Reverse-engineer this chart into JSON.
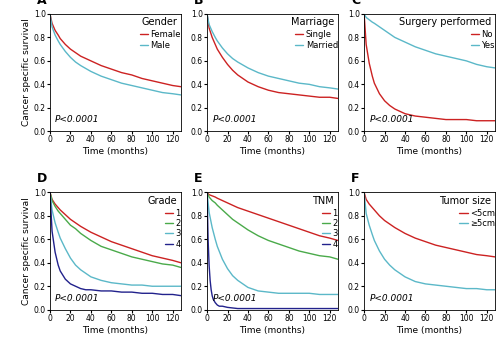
{
  "panels": [
    {
      "label": "A",
      "title": "Gender",
      "curves": [
        {
          "name": "Female",
          "color": "#CC2222",
          "x": [
            0,
            2,
            5,
            8,
            10,
            15,
            20,
            25,
            30,
            40,
            50,
            60,
            70,
            80,
            90,
            100,
            110,
            120,
            128
          ],
          "y": [
            1.0,
            0.92,
            0.86,
            0.82,
            0.79,
            0.74,
            0.7,
            0.67,
            0.64,
            0.6,
            0.56,
            0.53,
            0.5,
            0.48,
            0.45,
            0.43,
            0.41,
            0.39,
            0.38
          ]
        },
        {
          "name": "Male",
          "color": "#5BB8C8",
          "x": [
            0,
            2,
            5,
            8,
            10,
            15,
            20,
            25,
            30,
            40,
            50,
            60,
            70,
            80,
            90,
            100,
            110,
            120,
            128
          ],
          "y": [
            1.0,
            0.89,
            0.82,
            0.77,
            0.74,
            0.68,
            0.63,
            0.59,
            0.56,
            0.51,
            0.47,
            0.44,
            0.41,
            0.39,
            0.37,
            0.35,
            0.33,
            0.32,
            0.31
          ]
        }
      ]
    },
    {
      "label": "B",
      "title": "Marriage",
      "curves": [
        {
          "name": "Single",
          "color": "#CC2222",
          "x": [
            0,
            2,
            5,
            8,
            10,
            15,
            20,
            25,
            30,
            40,
            50,
            60,
            70,
            80,
            90,
            100,
            110,
            120,
            128
          ],
          "y": [
            1.0,
            0.88,
            0.8,
            0.74,
            0.7,
            0.63,
            0.57,
            0.52,
            0.48,
            0.42,
            0.38,
            0.35,
            0.33,
            0.32,
            0.31,
            0.3,
            0.29,
            0.29,
            0.28
          ]
        },
        {
          "name": "Married",
          "color": "#5BB8C8",
          "x": [
            0,
            2,
            5,
            8,
            10,
            15,
            20,
            25,
            30,
            40,
            50,
            60,
            70,
            80,
            90,
            100,
            110,
            120,
            128
          ],
          "y": [
            1.0,
            0.91,
            0.85,
            0.8,
            0.77,
            0.71,
            0.66,
            0.62,
            0.59,
            0.54,
            0.5,
            0.47,
            0.45,
            0.43,
            0.41,
            0.4,
            0.38,
            0.37,
            0.36
          ]
        }
      ]
    },
    {
      "label": "C",
      "title": "Surgery performed",
      "curves": [
        {
          "name": "No",
          "color": "#CC2222",
          "x": [
            0,
            2,
            5,
            8,
            10,
            15,
            20,
            25,
            30,
            40,
            50,
            60,
            70,
            80,
            90,
            100,
            110,
            120,
            128
          ],
          "y": [
            1.0,
            0.74,
            0.58,
            0.47,
            0.41,
            0.32,
            0.26,
            0.22,
            0.19,
            0.15,
            0.13,
            0.12,
            0.11,
            0.1,
            0.1,
            0.1,
            0.09,
            0.09,
            0.09
          ]
        },
        {
          "name": "Yes",
          "color": "#5BB8C8",
          "x": [
            0,
            2,
            5,
            8,
            10,
            15,
            20,
            25,
            30,
            40,
            50,
            60,
            70,
            80,
            90,
            100,
            110,
            120,
            128
          ],
          "y": [
            1.0,
            0.97,
            0.95,
            0.93,
            0.92,
            0.89,
            0.86,
            0.83,
            0.8,
            0.76,
            0.72,
            0.69,
            0.66,
            0.64,
            0.62,
            0.6,
            0.57,
            0.55,
            0.54
          ]
        }
      ]
    },
    {
      "label": "D",
      "title": "Grade",
      "curves": [
        {
          "name": "1",
          "color": "#CC2222",
          "x": [
            0,
            2,
            5,
            8,
            10,
            15,
            20,
            25,
            30,
            40,
            50,
            60,
            70,
            80,
            90,
            100,
            110,
            120,
            128
          ],
          "y": [
            1.0,
            0.94,
            0.9,
            0.87,
            0.85,
            0.81,
            0.77,
            0.74,
            0.71,
            0.66,
            0.62,
            0.58,
            0.55,
            0.52,
            0.49,
            0.46,
            0.44,
            0.42,
            0.4
          ]
        },
        {
          "name": "2",
          "color": "#4AAA4A",
          "x": [
            0,
            2,
            5,
            8,
            10,
            15,
            20,
            25,
            30,
            40,
            50,
            60,
            70,
            80,
            90,
            100,
            110,
            120,
            128
          ],
          "y": [
            1.0,
            0.93,
            0.88,
            0.84,
            0.82,
            0.77,
            0.72,
            0.69,
            0.65,
            0.59,
            0.54,
            0.51,
            0.48,
            0.45,
            0.43,
            0.41,
            0.39,
            0.38,
            0.36
          ]
        },
        {
          "name": "3",
          "color": "#5BB8C8",
          "x": [
            0,
            2,
            5,
            8,
            10,
            15,
            20,
            25,
            30,
            40,
            50,
            60,
            70,
            80,
            90,
            100,
            110,
            120,
            128
          ],
          "y": [
            1.0,
            0.85,
            0.74,
            0.66,
            0.61,
            0.52,
            0.44,
            0.38,
            0.34,
            0.28,
            0.25,
            0.23,
            0.22,
            0.21,
            0.21,
            0.2,
            0.2,
            0.2,
            0.2
          ]
        },
        {
          "name": "4",
          "color": "#22228C",
          "x": [
            0,
            2,
            5,
            8,
            10,
            15,
            20,
            25,
            30,
            35,
            40,
            50,
            60,
            70,
            80,
            90,
            100,
            110,
            120,
            128
          ],
          "y": [
            1.0,
            0.67,
            0.49,
            0.38,
            0.33,
            0.26,
            0.22,
            0.2,
            0.18,
            0.17,
            0.17,
            0.16,
            0.16,
            0.15,
            0.15,
            0.14,
            0.14,
            0.13,
            0.13,
            0.12
          ]
        }
      ]
    },
    {
      "label": "E",
      "title": "TNM",
      "curves": [
        {
          "name": "1",
          "color": "#CC2222",
          "x": [
            0,
            2,
            5,
            8,
            10,
            15,
            20,
            25,
            30,
            40,
            50,
            60,
            70,
            80,
            90,
            100,
            110,
            120,
            128
          ],
          "y": [
            1.0,
            0.98,
            0.97,
            0.96,
            0.95,
            0.93,
            0.91,
            0.89,
            0.87,
            0.84,
            0.81,
            0.78,
            0.75,
            0.72,
            0.69,
            0.66,
            0.63,
            0.61,
            0.59
          ]
        },
        {
          "name": "2",
          "color": "#4AAA4A",
          "x": [
            0,
            2,
            5,
            8,
            10,
            15,
            20,
            25,
            30,
            40,
            50,
            60,
            70,
            80,
            90,
            100,
            110,
            120,
            128
          ],
          "y": [
            1.0,
            0.96,
            0.93,
            0.91,
            0.89,
            0.85,
            0.81,
            0.77,
            0.74,
            0.68,
            0.63,
            0.59,
            0.56,
            0.53,
            0.5,
            0.48,
            0.46,
            0.45,
            0.43
          ]
        },
        {
          "name": "3",
          "color": "#5BB8C8",
          "x": [
            0,
            2,
            5,
            8,
            10,
            15,
            20,
            25,
            30,
            40,
            50,
            60,
            70,
            80,
            90,
            100,
            110,
            120,
            128
          ],
          "y": [
            1.0,
            0.83,
            0.7,
            0.6,
            0.54,
            0.43,
            0.35,
            0.29,
            0.25,
            0.19,
            0.16,
            0.15,
            0.14,
            0.14,
            0.14,
            0.14,
            0.13,
            0.13,
            0.13
          ]
        },
        {
          "name": "4",
          "color": "#22228C",
          "x": [
            0,
            1,
            2,
            3,
            4,
            5,
            6,
            8,
            10,
            12,
            15,
            20,
            30,
            40,
            50,
            60,
            70,
            80,
            100,
            120,
            128
          ],
          "y": [
            1.0,
            0.6,
            0.38,
            0.25,
            0.17,
            0.12,
            0.09,
            0.06,
            0.04,
            0.03,
            0.03,
            0.02,
            0.01,
            0.01,
            0.01,
            0.01,
            0.01,
            0.01,
            0.01,
            0.01,
            0.01
          ]
        }
      ]
    },
    {
      "label": "F",
      "title": "Tumor size",
      "curves": [
        {
          "name": "<5cm",
          "color": "#CC2222",
          "x": [
            0,
            2,
            5,
            8,
            10,
            15,
            20,
            25,
            30,
            40,
            50,
            60,
            70,
            80,
            90,
            100,
            110,
            120,
            128
          ],
          "y": [
            1.0,
            0.94,
            0.9,
            0.87,
            0.85,
            0.8,
            0.76,
            0.73,
            0.7,
            0.65,
            0.61,
            0.58,
            0.55,
            0.53,
            0.51,
            0.49,
            0.47,
            0.46,
            0.45
          ]
        },
        {
          "name": "≥5cm",
          "color": "#5BB8C8",
          "x": [
            0,
            2,
            5,
            8,
            10,
            15,
            20,
            25,
            30,
            40,
            50,
            60,
            70,
            80,
            90,
            100,
            110,
            120,
            128
          ],
          "y": [
            1.0,
            0.82,
            0.72,
            0.64,
            0.59,
            0.5,
            0.43,
            0.38,
            0.34,
            0.28,
            0.24,
            0.22,
            0.21,
            0.2,
            0.19,
            0.18,
            0.18,
            0.17,
            0.17
          ]
        }
      ]
    }
  ],
  "pvalue_text": "P<0.0001",
  "xlabel": "Time (months)",
  "ylabel": "Cancer specific survival",
  "ylim": [
    0.0,
    1.0
  ],
  "xlim": [
    0,
    128
  ],
  "xticks": [
    0,
    20,
    40,
    60,
    80,
    100,
    120
  ],
  "yticks": [
    0.0,
    0.2,
    0.4,
    0.6,
    0.8,
    1.0
  ],
  "bg_color": "#ffffff",
  "panel_label_fontsize": 9,
  "title_fontsize": 7,
  "legend_fontsize": 6,
  "tick_fontsize": 5.5,
  "axis_label_fontsize": 6.5,
  "pval_fontsize": 6.5,
  "linewidth": 1.0
}
